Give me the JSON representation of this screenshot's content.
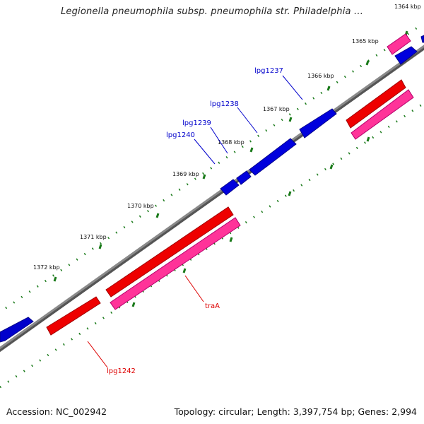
{
  "title": "Legionella pneumophila subsp. pneumophila str. Philadelphia ...",
  "footer": {
    "accession": "Accession: NC_002942",
    "summary": "Topology: circular; Length: 3,397,754 bp; Genes: 2,994"
  },
  "colors": {
    "backbone": "#808080",
    "tick": "#1a7a1a",
    "forward_gene": "#0000dd",
    "reverse_gene": "#ee0000",
    "reverse_cds": "#ff3399",
    "forward_label": "#0000cc",
    "reverse_label": "#dd0000"
  },
  "position_ticks": [
    "1364 kbp",
    "1365 kbp",
    "1366 kbp",
    "1367 kbp",
    "1368 kbp",
    "1369 kbp",
    "1370 kbp",
    "1371 kbp",
    "1372 kbp"
  ],
  "gene_labels": {
    "forward": [
      "lpg1237",
      "lpg1238",
      "lpg1239",
      "lpg1240"
    ],
    "reverse": [
      "traA",
      "lpg1242"
    ]
  }
}
